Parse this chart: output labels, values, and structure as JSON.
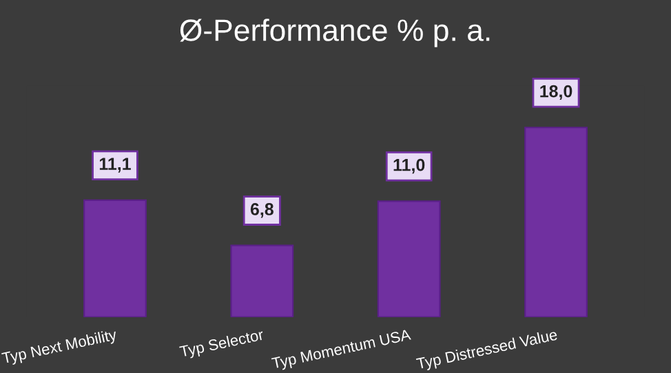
{
  "chart_data": {
    "type": "bar",
    "title": "Ø-Performance % p. a.",
    "categories": [
      "Typ Next Mobility",
      "Typ Selector",
      "Typ Momentum USA",
      "Typ Distressed Value"
    ],
    "values": [
      11.1,
      6.8,
      11.0,
      18.0
    ],
    "value_labels": [
      "11,1",
      "6,8",
      "11,0",
      "18,0"
    ],
    "color": "#7030a0",
    "tick_labels": "x",
    "grid": false,
    "legend": false
  }
}
